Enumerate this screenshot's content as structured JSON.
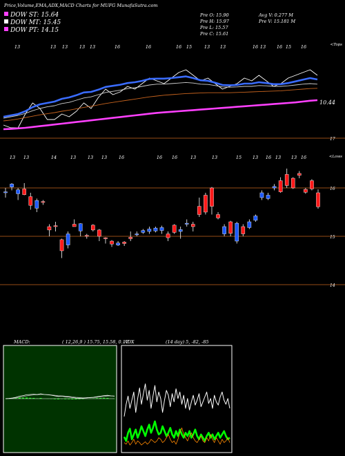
{
  "header": {
    "title": "Price,Volume,EMA,ADX,MACD Charts for MUFG MunafaSutra.com",
    "legend": [
      {
        "label": "DOW ST: 15.64",
        "color": "#ff40ff"
      },
      {
        "label": "DOW MT: 15.45",
        "color": "#ffffff"
      },
      {
        "label": "DOW PT: 14.15",
        "color": "#ff40ff"
      }
    ],
    "stats": {
      "prev_open": "Pre   O: 15.90",
      "prev_high": "Pre   H: 15.97",
      "prev_low": "Pre   L: 15.57",
      "prev_close": "Pre   C: 15.61",
      "avg_volume": "Avg V: 0.277 M",
      "prev_volume": "Pre   V: 15.181 M"
    }
  },
  "panel_labels": {
    "upper_corner": "<Tops",
    "lower_corner": "<Lows",
    "ema_value": "10.44",
    "ema_hline": "17"
  },
  "chart_data": [
    {
      "type": "line",
      "name": "ema-panel",
      "top_tick_labels": [
        "13",
        "13",
        "13",
        "13",
        "13",
        "16",
        "16",
        "16",
        "15",
        "13",
        "13",
        "16",
        "13",
        "16",
        "15",
        "16"
      ],
      "price_label": "10.44",
      "series": [
        {
          "color": "#ffffff",
          "values": [
            16.6,
            16.5,
            16.5,
            17.0,
            17.4,
            17.2,
            16.8,
            16.8,
            17.0,
            16.9,
            17.1,
            17.4,
            17.2,
            17.6,
            17.9,
            17.7,
            17.8,
            18.0,
            17.9,
            18.1,
            18.3,
            18.2,
            18.1,
            18.3,
            18.5,
            18.6,
            18.4,
            18.2,
            18.3,
            18.1,
            17.9,
            18.0,
            18.1,
            18.3,
            18.2,
            18.4,
            18.2,
            18.0,
            18.1,
            18.3,
            18.4,
            18.5,
            18.6,
            18.4
          ]
        },
        {
          "color": "#3a6cff",
          "values": [
            16.9,
            16.95,
            17.0,
            17.1,
            17.25,
            17.35,
            17.4,
            17.45,
            17.55,
            17.6,
            17.68,
            17.78,
            17.8,
            17.88,
            17.98,
            18.02,
            18.06,
            18.12,
            18.15,
            18.2,
            18.27,
            18.28,
            18.28,
            18.3,
            18.33,
            18.36,
            18.3,
            18.22,
            18.2,
            18.13,
            18.05,
            18.04,
            18.05,
            18.1,
            18.1,
            18.15,
            18.12,
            18.08,
            18.08,
            18.12,
            18.18,
            18.24,
            18.3,
            18.25
          ]
        },
        {
          "color": "#d0d0d0",
          "values": [
            16.85,
            16.9,
            16.95,
            17.02,
            17.12,
            17.2,
            17.26,
            17.3,
            17.38,
            17.42,
            17.5,
            17.58,
            17.62,
            17.7,
            17.78,
            17.82,
            17.86,
            17.92,
            17.95,
            18.0,
            18.05,
            18.08,
            18.08,
            18.1,
            18.12,
            18.14,
            18.12,
            18.08,
            18.07,
            18.03,
            17.98,
            17.97,
            17.98,
            18.0,
            18.0,
            18.03,
            18.02,
            18.0,
            18.0,
            18.02,
            18.05,
            18.08,
            18.1,
            18.08
          ]
        },
        {
          "color": "#c8641e",
          "values": [
            16.75,
            16.78,
            16.82,
            16.87,
            16.92,
            16.97,
            17.01,
            17.05,
            17.1,
            17.14,
            17.19,
            17.24,
            17.28,
            17.33,
            17.38,
            17.42,
            17.46,
            17.5,
            17.54,
            17.58,
            17.62,
            17.65,
            17.68,
            17.7,
            17.72,
            17.74,
            17.75,
            17.76,
            17.77,
            17.77,
            17.77,
            17.77,
            17.78,
            17.79,
            17.8,
            17.81,
            17.82,
            17.83,
            17.84,
            17.86,
            17.88,
            17.9,
            17.92,
            17.93
          ]
        },
        {
          "color": "#ff40ff",
          "values": [
            16.45,
            16.46,
            16.48,
            16.5,
            16.53,
            16.56,
            16.59,
            16.62,
            16.65,
            16.68,
            16.71,
            16.74,
            16.77,
            16.8,
            16.83,
            16.86,
            16.89,
            16.92,
            16.95,
            16.98,
            17.01,
            17.04,
            17.06,
            17.08,
            17.1,
            17.12,
            17.14,
            17.16,
            17.18,
            17.2,
            17.22,
            17.24,
            17.26,
            17.28,
            17.3,
            17.32,
            17.34,
            17.36,
            17.38,
            17.4,
            17.42,
            17.45,
            17.48,
            17.5
          ]
        }
      ]
    },
    {
      "type": "candlestick",
      "name": "price-panel",
      "top_tick_labels": [
        "13",
        "13",
        "14",
        "13",
        "13",
        "13",
        "16",
        "16",
        "16",
        "13",
        "13",
        "15",
        "13",
        "16",
        "13",
        "13",
        "16"
      ],
      "ylim": [
        13.8,
        16.7
      ],
      "y_ticks": [
        16,
        15,
        14
      ],
      "candles": [
        {
          "o": 15.9,
          "c": 15.92,
          "h": 16.0,
          "l": 15.8
        },
        {
          "o": 16.02,
          "c": 16.08,
          "h": 16.1,
          "l": 15.95
        },
        {
          "o": 15.88,
          "c": 15.96,
          "h": 16.0,
          "l": 15.75
        },
        {
          "o": 15.98,
          "c": 15.86,
          "h": 16.1,
          "l": 15.85
        },
        {
          "o": 15.82,
          "c": 15.64,
          "h": 15.9,
          "l": 15.55
        },
        {
          "o": 15.58,
          "c": 15.74,
          "h": 15.78,
          "l": 15.5
        },
        {
          "o": 15.72,
          "c": 15.7,
          "h": 15.75,
          "l": 15.65
        },
        {
          "o": 15.2,
          "c": 15.13,
          "h": 15.25,
          "l": 15.0
        },
        {
          "o": 15.22,
          "c": 15.2,
          "h": 15.3,
          "l": 15.1
        },
        {
          "o": 14.93,
          "c": 14.7,
          "h": 14.95,
          "l": 14.55
        },
        {
          "o": 14.82,
          "c": 15.05,
          "h": 15.1,
          "l": 14.75
        },
        {
          "o": 15.25,
          "c": 15.2,
          "h": 15.35,
          "l": 15.2
        },
        {
          "o": 15.11,
          "c": 15.26,
          "h": 15.27,
          "l": 15.0
        },
        {
          "o": 15.02,
          "c": 15.0,
          "h": 15.05,
          "l": 14.95
        },
        {
          "o": 15.23,
          "c": 15.13,
          "h": 15.25,
          "l": 15.1
        },
        {
          "o": 15.13,
          "c": 15.0,
          "h": 15.15,
          "l": 14.9
        },
        {
          "o": 14.97,
          "c": 14.95,
          "h": 14.98,
          "l": 14.85
        },
        {
          "o": 14.9,
          "c": 14.84,
          "h": 14.92,
          "l": 14.78
        },
        {
          "o": 14.82,
          "c": 14.86,
          "h": 14.9,
          "l": 14.8
        },
        {
          "o": 14.88,
          "c": 14.85,
          "h": 14.9,
          "l": 14.8
        },
        {
          "o": 14.98,
          "c": 14.95,
          "h": 15.1,
          "l": 14.9
        },
        {
          "o": 15.03,
          "c": 15.05,
          "h": 15.1,
          "l": 15.0
        },
        {
          "o": 15.08,
          "c": 15.12,
          "h": 15.15,
          "l": 15.05
        },
        {
          "o": 15.1,
          "c": 15.15,
          "h": 15.2,
          "l": 15.05
        },
        {
          "o": 15.11,
          "c": 15.17,
          "h": 15.2,
          "l": 15.08
        },
        {
          "o": 15.12,
          "c": 15.18,
          "h": 15.22,
          "l": 15.05
        },
        {
          "o": 15.05,
          "c": 14.97,
          "h": 15.1,
          "l": 14.9
        },
        {
          "o": 15.23,
          "c": 15.08,
          "h": 15.25,
          "l": 15.05
        },
        {
          "o": 15.1,
          "c": 15.14,
          "h": 15.2,
          "l": 14.95
        },
        {
          "o": 15.25,
          "c": 15.27,
          "h": 15.35,
          "l": 15.2
        },
        {
          "o": 15.25,
          "c": 15.2,
          "h": 15.3,
          "l": 15.1
        },
        {
          "o": 15.62,
          "c": 15.45,
          "h": 15.8,
          "l": 15.4
        },
        {
          "o": 15.85,
          "c": 15.5,
          "h": 15.9,
          "l": 15.45
        },
        {
          "o": 16.0,
          "c": 15.62,
          "h": 16.02,
          "l": 15.45
        },
        {
          "o": 15.45,
          "c": 15.38,
          "h": 15.5,
          "l": 15.35
        },
        {
          "o": 15.05,
          "c": 15.2,
          "h": 15.25,
          "l": 15.0
        },
        {
          "o": 15.3,
          "c": 15.06,
          "h": 15.32,
          "l": 15.0
        },
        {
          "o": 14.9,
          "c": 15.27,
          "h": 15.3,
          "l": 14.85
        },
        {
          "o": 15.2,
          "c": 15.05,
          "h": 15.25,
          "l": 15.0
        },
        {
          "o": 15.18,
          "c": 15.3,
          "h": 15.35,
          "l": 15.15
        },
        {
          "o": 15.33,
          "c": 15.42,
          "h": 15.45,
          "l": 15.3
        },
        {
          "o": 15.8,
          "c": 15.9,
          "h": 15.95,
          "l": 15.75
        },
        {
          "o": 15.78,
          "c": 15.85,
          "h": 15.9,
          "l": 15.75
        },
        {
          "o": 16.0,
          "c": 16.03,
          "h": 16.08,
          "l": 15.95
        },
        {
          "o": 16.15,
          "c": 15.92,
          "h": 16.22,
          "l": 15.9
        },
        {
          "o": 16.28,
          "c": 16.05,
          "h": 16.4,
          "l": 16.0
        },
        {
          "o": 16.2,
          "c": 16.0,
          "h": 16.22,
          "l": 15.98
        },
        {
          "o": 16.3,
          "c": 16.26,
          "h": 16.35,
          "l": 16.2
        },
        {
          "o": 15.97,
          "c": 15.91,
          "h": 16.0,
          "l": 15.88
        },
        {
          "o": 16.15,
          "c": 15.98,
          "h": 16.18,
          "l": 15.95
        },
        {
          "o": 15.9,
          "c": 15.61,
          "h": 15.97,
          "l": 15.57
        }
      ],
      "price_levels": [
        16,
        15,
        14
      ]
    },
    {
      "type": "area",
      "name": "macd-panel",
      "header": "MACD:",
      "values_text": "( 12,26,9 ) 15.75, 15.58, 0.17",
      "series": [
        {
          "name": "macd",
          "color": "#ffffff",
          "values": [
            0,
            0.02,
            0.05,
            0.1,
            0.18,
            0.22,
            0.28,
            0.3,
            0.32,
            0.3,
            0.35,
            0.3,
            0.28,
            0.25,
            0.2,
            0.16,
            0.18,
            0.14,
            0.12,
            0.08,
            0.05,
            0.04,
            0.03,
            0.06,
            0.08,
            0.1,
            0.14,
            0.18,
            0.22,
            0.24,
            0.2,
            0.18
          ]
        },
        {
          "name": "signal",
          "color": "#aaaaaa",
          "values": [
            0,
            0.01,
            0.03,
            0.06,
            0.1,
            0.15,
            0.2,
            0.24,
            0.27,
            0.28,
            0.3,
            0.3,
            0.29,
            0.27,
            0.24,
            0.21,
            0.2,
            0.18,
            0.16,
            0.13,
            0.1,
            0.08,
            0.06,
            0.06,
            0.07,
            0.08,
            0.1,
            0.13,
            0.16,
            0.19,
            0.2,
            0.19
          ]
        },
        {
          "name": "histogram",
          "color": "#00ff00",
          "values": [
            0,
            0.01,
            0.02,
            0.04,
            0.08,
            0.07,
            0.08,
            0.06,
            0.05,
            0.02,
            0.05,
            0.0,
            -0.01,
            -0.02,
            -0.04,
            -0.05,
            -0.02,
            -0.04,
            -0.04,
            -0.05,
            -0.05,
            -0.04,
            -0.03,
            0.0,
            0.01,
            0.02,
            0.04,
            0.05,
            0.06,
            0.05,
            0.0,
            -0.01
          ]
        }
      ]
    },
    {
      "type": "line",
      "name": "adx-panel",
      "header": "ADX",
      "values_text": "(14 day) 5, -82, -85",
      "series": [
        {
          "name": "adx",
          "color": "#ffffff",
          "values": [
            40,
            55,
            65,
            50,
            60,
            70,
            45,
            62,
            75,
            55,
            68,
            80,
            60,
            72,
            50,
            65,
            78,
            58,
            70,
            62,
            45,
            60,
            72,
            66,
            52,
            68,
            58,
            74,
            62,
            70,
            55,
            66,
            50,
            62,
            48,
            58,
            66,
            54,
            60,
            68,
            52,
            58,
            64,
            70,
            56,
            62,
            50,
            66,
            58,
            54,
            64,
            70,
            60,
            55,
            62,
            50
          ]
        },
        {
          "name": "plus_di",
          "color": "#00ff00",
          "values": [
            15,
            10,
            20,
            25,
            12,
            18,
            24,
            14,
            20,
            28,
            22,
            16,
            24,
            30,
            20,
            26,
            34,
            24,
            18,
            20,
            28,
            22,
            16,
            20,
            26,
            18,
            14,
            22,
            16,
            24,
            18,
            14,
            20,
            16,
            22,
            14,
            18,
            24,
            16,
            12,
            18,
            14,
            10,
            16,
            20,
            14,
            18,
            12,
            16,
            20,
            14,
            18,
            22,
            16,
            12,
            14
          ]
        },
        {
          "name": "minus_di",
          "color": "#ff8800",
          "values": [
            8,
            6,
            10,
            5,
            8,
            12,
            6,
            10,
            8,
            5,
            7,
            9,
            6,
            8,
            12,
            10,
            8,
            10,
            14,
            12,
            8,
            10,
            14,
            18,
            12,
            8,
            10,
            6,
            12,
            20,
            26,
            18,
            14,
            10,
            16,
            20,
            14,
            10,
            8,
            12,
            16,
            10,
            8,
            14,
            10,
            18,
            12,
            8,
            14,
            10,
            6,
            12,
            8,
            10,
            14,
            8
          ]
        }
      ]
    }
  ]
}
